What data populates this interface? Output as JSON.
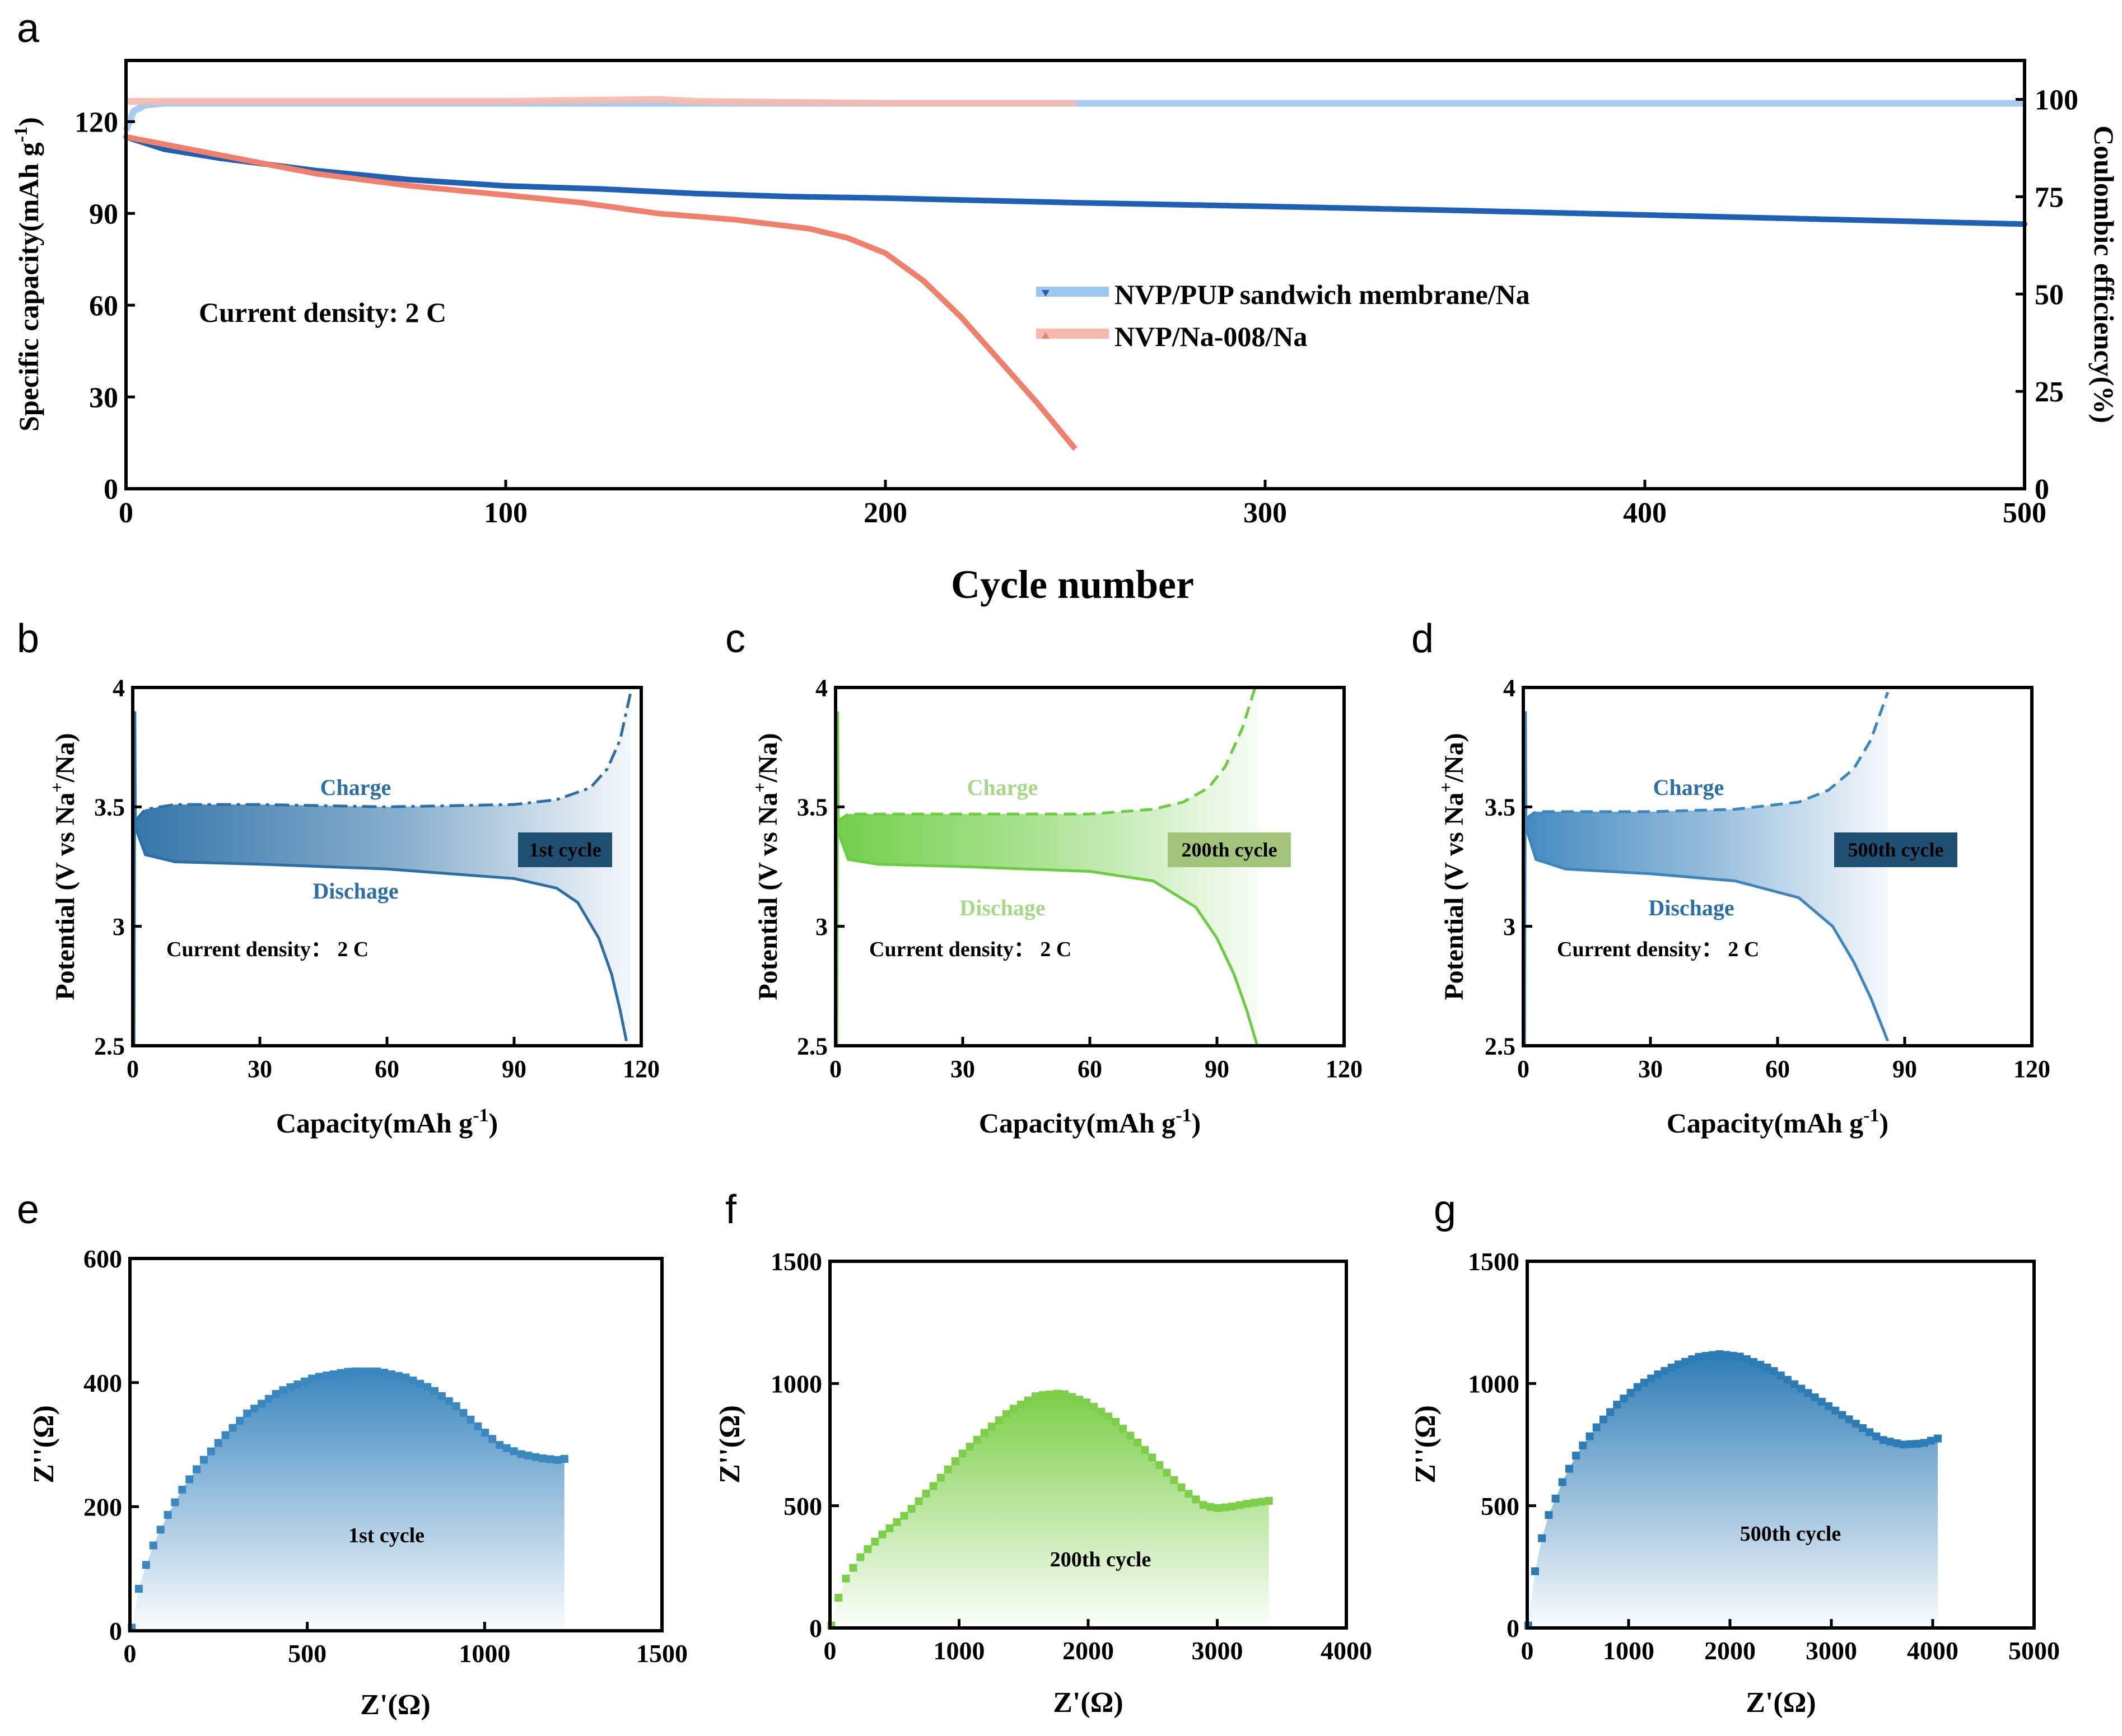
{
  "chart_data": [
    {
      "panel": "a",
      "type": "line",
      "xlabel": "Cycle number",
      "ylabel": "Specific capacity(mAh g",
      "ylabel_sup": "-1",
      "ylabel_end": ")",
      "y2label": "Coulombic efficiency(%)",
      "xlim": [
        0,
        500
      ],
      "ylim": [
        0,
        140
      ],
      "y2lim": [
        0,
        110
      ],
      "xticks": [
        0,
        100,
        200,
        300,
        400,
        500
      ],
      "yticks": [
        0,
        30,
        60,
        90,
        120
      ],
      "y2ticks": [
        0,
        25,
        50,
        75,
        100
      ],
      "annotation": "Current density: 2 C",
      "legend_position": "center-right",
      "series": [
        {
          "name": "NVP/PUP sandwich membrane/Na",
          "color": "#1f5fb4",
          "axis": "left",
          "x": [
            0,
            10,
            25,
            50,
            75,
            100,
            125,
            150,
            175,
            200,
            250,
            300,
            350,
            400,
            450,
            500
          ],
          "y": [
            115,
            111,
            108,
            104,
            101,
            99,
            98,
            96.5,
            95.5,
            95,
            93.5,
            92.3,
            91,
            89.5,
            88,
            86.5
          ]
        },
        {
          "name": "NVP/PUP sandwich membrane/Na CE",
          "color": "#9cc8ef",
          "axis": "right",
          "x": [
            0,
            2,
            5,
            10,
            50,
            100,
            200,
            300,
            400,
            500
          ],
          "y": [
            92,
            97,
            98.5,
            99,
            99,
            99,
            99,
            99,
            99,
            99
          ]
        },
        {
          "name": "NVP/Na-008/Na",
          "color": "#f0806c",
          "axis": "left",
          "x": [
            0,
            25,
            50,
            75,
            100,
            120,
            140,
            160,
            180,
            190,
            200,
            210,
            220,
            230,
            240,
            250
          ],
          "y": [
            115,
            109,
            103,
            99,
            96,
            93.5,
            90,
            88,
            85,
            82,
            77,
            68,
            56,
            42,
            28,
            13
          ]
        },
        {
          "name": "NVP/Na-008/Na CE",
          "color": "#f7b9ac",
          "axis": "right",
          "x": [
            0,
            50,
            100,
            140,
            150,
            200,
            250
          ],
          "y": [
            99.5,
            99.5,
            99.5,
            100,
            99.5,
            99,
            99
          ]
        }
      ]
    },
    {
      "panel": "b",
      "type": "line",
      "xlabel": "Capacity(mAh g",
      "xlabel_sup": "-1",
      "xlabel_end": ")",
      "ylabel": "Potential (V vs Na",
      "ylabel_sup": "+",
      "ylabel_end": "/Na)",
      "xlim": [
        0,
        120
      ],
      "ylim": [
        2.5,
        4.0
      ],
      "xticks": [
        0,
        30,
        60,
        90,
        120
      ],
      "yticks": [
        2.5,
        3.0,
        3.5,
        4.0
      ],
      "charge_label": "Charge",
      "discharge_label": "Dischage",
      "cycle_label": "1st cycle",
      "annotation": "Current density： 2 C",
      "color": "#2b6fa6",
      "charge": {
        "x": [
          0.5,
          3,
          10,
          30,
          60,
          90,
          100,
          108,
          112,
          115,
          117.5
        ],
        "y": [
          3.44,
          3.49,
          3.51,
          3.51,
          3.5,
          3.51,
          3.53,
          3.58,
          3.66,
          3.78,
          3.98
        ]
      },
      "discharge": {
        "x": [
          0.5,
          3,
          10,
          30,
          60,
          90,
          100,
          105,
          110,
          113,
          115,
          116.5
        ],
        "y": [
          3.42,
          3.3,
          3.27,
          3.26,
          3.24,
          3.2,
          3.16,
          3.1,
          2.95,
          2.8,
          2.65,
          2.52
        ]
      }
    },
    {
      "panel": "c",
      "type": "line",
      "xlabel": "Capacity(mAh g",
      "xlabel_sup": "-1",
      "xlabel_end": ")",
      "ylabel": "Potential (V vs Na",
      "ylabel_sup": "+",
      "ylabel_end": "/Na)",
      "xlim": [
        0,
        120
      ],
      "ylim": [
        2.5,
        4.0
      ],
      "xticks": [
        0,
        30,
        60,
        90,
        120
      ],
      "yticks": [
        2.5,
        3.0,
        3.5,
        4.0
      ],
      "charge_label": "Charge",
      "discharge_label": "Dischage",
      "cycle_label": "200th cycle",
      "annotation": "Current density： 2 C",
      "color": "#6ccd42",
      "charge": {
        "x": [
          0.5,
          3,
          10,
          30,
          60,
          75,
          82,
          88,
          92,
          96,
          99
        ],
        "y": [
          3.44,
          3.47,
          3.47,
          3.47,
          3.47,
          3.49,
          3.52,
          3.58,
          3.67,
          3.83,
          4.0
        ]
      },
      "discharge": {
        "x": [
          0.5,
          3,
          10,
          30,
          60,
          75,
          85,
          90,
          94,
          97,
          99.5
        ],
        "y": [
          3.4,
          3.28,
          3.26,
          3.25,
          3.23,
          3.19,
          3.08,
          2.95,
          2.8,
          2.65,
          2.5
        ]
      }
    },
    {
      "panel": "d",
      "type": "line",
      "xlabel": "Capacity(mAh g",
      "xlabel_sup": "-1",
      "xlabel_end": ")",
      "ylabel": "Potential (V vs Na",
      "ylabel_sup": "+",
      "ylabel_end": "/Na)",
      "xlim": [
        0,
        120
      ],
      "ylim": [
        2.5,
        4.0
      ],
      "xticks": [
        0,
        30,
        60,
        90,
        120
      ],
      "yticks": [
        2.5,
        3.0,
        3.5,
        4.0
      ],
      "charge_label": "Charge",
      "discharge_label": "Dischage",
      "cycle_label": "500th cycle",
      "annotation": "Current density： 2 C",
      "color": "#3c85bd",
      "charge": {
        "x": [
          0.5,
          3,
          10,
          30,
          50,
          65,
          72,
          78,
          82,
          86
        ],
        "y": [
          3.45,
          3.48,
          3.48,
          3.48,
          3.49,
          3.52,
          3.57,
          3.66,
          3.78,
          3.98
        ]
      },
      "discharge": {
        "x": [
          0.5,
          3,
          10,
          30,
          50,
          65,
          73,
          78,
          82,
          86
        ],
        "y": [
          3.42,
          3.28,
          3.24,
          3.22,
          3.19,
          3.12,
          3.0,
          2.85,
          2.7,
          2.52
        ]
      }
    },
    {
      "panel": "e",
      "type": "scatter",
      "xlabel": "Z'(Ω)",
      "ylabel": "Z''(Ω)",
      "xlim": [
        0,
        1500
      ],
      "ylim": [
        0,
        600
      ],
      "xticks": [
        0,
        500,
        1000,
        1500
      ],
      "yticks": [
        0,
        200,
        400,
        600
      ],
      "cycle_label": "1st cycle",
      "color": "#3b87bf",
      "x": [
        5,
        15,
        30,
        60,
        100,
        150,
        200,
        260,
        330,
        420,
        520,
        620,
        700,
        780,
        850,
        920,
        980,
        1040,
        1100,
        1160,
        1210,
        1225
      ],
      "y": [
        5,
        40,
        80,
        130,
        180,
        230,
        270,
        310,
        350,
        385,
        408,
        418,
        418,
        408,
        390,
        362,
        330,
        300,
        285,
        278,
        275,
        277
      ]
    },
    {
      "panel": "f",
      "type": "scatter",
      "xlabel": "Z'(Ω)",
      "ylabel": "Z''(Ω)",
      "xlim": [
        0,
        4000
      ],
      "ylim": [
        0,
        1500
      ],
      "xticks": [
        0,
        1000,
        2000,
        3000,
        4000
      ],
      "yticks": [
        0,
        500,
        1000,
        1500
      ],
      "cycle_label": "200th cycle",
      "color": "#7dcf49",
      "x": [
        10,
        50,
        120,
        250,
        400,
        600,
        800,
        1000,
        1200,
        1400,
        1600,
        1800,
        2000,
        2200,
        2400,
        2600,
        2750,
        2900,
        3000,
        3100,
        3250,
        3400
      ],
      "y": [
        10,
        100,
        200,
        300,
        380,
        470,
        580,
        700,
        800,
        890,
        950,
        960,
        920,
        850,
        750,
        640,
        560,
        500,
        490,
        495,
        510,
        520
      ]
    },
    {
      "panel": "g",
      "type": "scatter",
      "xlabel": "Z'(Ω)",
      "ylabel": "Z''(Ω)",
      "xlim": [
        0,
        5000
      ],
      "ylim": [
        0,
        1500
      ],
      "xticks": [
        0,
        1000,
        2000,
        3000,
        4000,
        5000
      ],
      "yticks": [
        0,
        500,
        1000,
        1500
      ],
      "cycle_label": "500th cycle",
      "color": "#2e7cb6",
      "x": [
        10,
        50,
        100,
        200,
        350,
        500,
        700,
        900,
        1100,
        1300,
        1500,
        1700,
        1900,
        2100,
        2400,
        2700,
        3000,
        3300,
        3500,
        3700,
        3900,
        4050
      ],
      "y": [
        10,
        150,
        300,
        450,
        600,
        720,
        830,
        920,
        990,
        1040,
        1080,
        1110,
        1120,
        1110,
        1060,
        980,
        900,
        820,
        770,
        750,
        755,
        775
      ]
    }
  ],
  "panel_letters": [
    "a",
    "b",
    "c",
    "d",
    "e",
    "f",
    "g"
  ]
}
